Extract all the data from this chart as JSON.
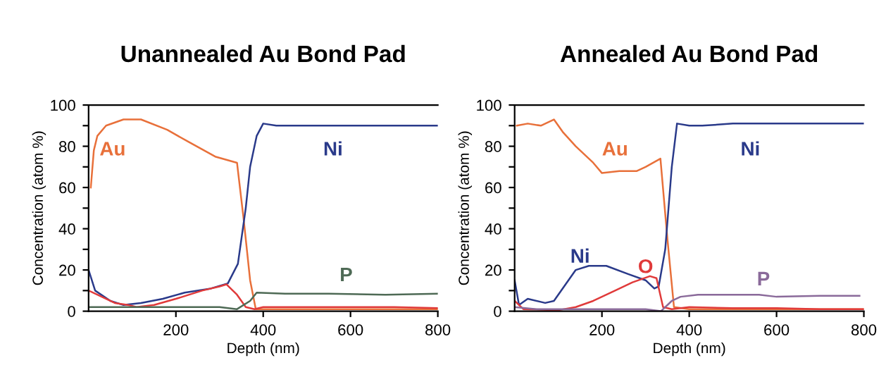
{
  "chart_data": [
    {
      "type": "line",
      "title": "Unannealed Au Bond Pad",
      "xlabel": "Depth (nm)",
      "ylabel": "Concentration (atom %)",
      "xlim": [
        0,
        800
      ],
      "ylim": [
        0,
        100
      ],
      "xticks": [
        200,
        400,
        600,
        800
      ],
      "yticks": [
        0,
        {
          "value": 10,
          "label": null
        },
        20,
        {
          "value": 30,
          "label": null
        },
        40,
        {
          "value": 50,
          "label": null
        },
        60,
        {
          "value": 70,
          "label": null
        },
        80,
        {
          "value": 90,
          "label": null
        },
        100
      ],
      "grid": false,
      "legend": false,
      "series": [
        {
          "name": "Au",
          "color": "#e8703a",
          "x": [
            5,
            12,
            20,
            40,
            80,
            120,
            180,
            230,
            290,
            340,
            355,
            370,
            383,
            400,
            500,
            600,
            700,
            800
          ],
          "values": [
            60,
            78,
            85,
            90,
            93,
            93,
            88,
            82,
            75,
            72,
            45,
            15,
            1,
            1,
            1,
            1,
            1,
            1
          ]
        },
        {
          "name": "Ni",
          "color": "#2a3a8a",
          "x": [
            0,
            15,
            50,
            80,
            120,
            170,
            220,
            280,
            319,
            342,
            360,
            370,
            385,
            400,
            430,
            500,
            600,
            700,
            800
          ],
          "values": [
            20,
            10,
            5,
            3,
            4,
            6,
            9,
            11,
            13.5,
            23,
            50,
            70,
            85,
            91,
            90,
            90,
            90,
            90,
            90
          ]
        },
        {
          "color": "#e03a3a",
          "x": [
            0,
            20,
            60,
            90,
            110,
            150,
            200,
            260,
            300,
            316,
            340,
            360,
            380,
            400,
            500,
            600,
            700,
            800
          ],
          "values": [
            10,
            8,
            4,
            3,
            2,
            3,
            6,
            10,
            12,
            13,
            8,
            2,
            1,
            2,
            2,
            2,
            2,
            1.5
          ]
        },
        {
          "name": "P",
          "color": "#4e6a55",
          "x": [
            0,
            100,
            200,
            300,
            340,
            370,
            385,
            450,
            550,
            680,
            800
          ],
          "values": [
            2,
            2,
            2,
            2,
            1,
            5,
            9,
            8.5,
            8.5,
            8,
            8.5
          ]
        }
      ]
    },
    {
      "type": "line",
      "title": "Annealed Au Bond Pad",
      "xlabel": "Depth (nm)",
      "ylabel": "Concentration (atom %)",
      "xlim": [
        0,
        800
      ],
      "ylim": [
        0,
        100
      ],
      "xticks": [
        200,
        400,
        600,
        800
      ],
      "yticks": [
        0,
        {
          "value": 10,
          "label": null
        },
        20,
        {
          "value": 30,
          "label": null
        },
        40,
        {
          "value": 50,
          "label": null
        },
        60,
        {
          "value": 70,
          "label": null
        },
        80,
        {
          "value": 90,
          "label": null
        },
        100
      ],
      "grid": false,
      "legend": false,
      "series": [
        {
          "name": "Au",
          "color": "#e8703a",
          "x": [
            5,
            30,
            60,
            90,
            110,
            140,
            180,
            200,
            240,
            280,
            300,
            334,
            350,
            365,
            400,
            500,
            600,
            700,
            800
          ],
          "values": [
            90,
            91,
            90,
            93,
            87,
            80,
            72,
            67,
            68,
            68,
            70,
            74,
            35,
            2,
            1,
            1,
            1,
            1,
            1
          ]
        },
        {
          "name": "Ni",
          "color": "#2a3a8a",
          "x": [
            0,
            10,
            30,
            70,
            90,
            140,
            170,
            210,
            260,
            300,
            320,
            330,
            345,
            360,
            372,
            400,
            430,
            500,
            600,
            700,
            800
          ],
          "values": [
            15,
            3,
            6,
            4,
            5,
            20,
            22,
            22,
            18,
            15,
            11,
            12,
            30,
            70,
            91,
            90,
            90,
            91,
            91,
            91,
            91
          ]
        },
        {
          "name": "O",
          "color": "#e03a3a",
          "x": [
            0,
            20,
            100,
            140,
            180,
            230,
            270,
            310,
            325,
            340,
            360,
            400,
            500,
            600,
            700,
            800
          ],
          "values": [
            5,
            1,
            0.5,
            2,
            5,
            10,
            14,
            17,
            16,
            2,
            1,
            2,
            1.5,
            1.5,
            1,
            1
          ]
        },
        {
          "name": "P",
          "color": "#8a6a9a",
          "x": [
            0,
            50,
            300,
            335,
            360,
            380,
            420,
            500,
            560,
            600,
            700,
            790
          ],
          "values": [
            2,
            1,
            1,
            0,
            5,
            7,
            8,
            8,
            8,
            7,
            7.5,
            7.5
          ]
        }
      ]
    }
  ]
}
